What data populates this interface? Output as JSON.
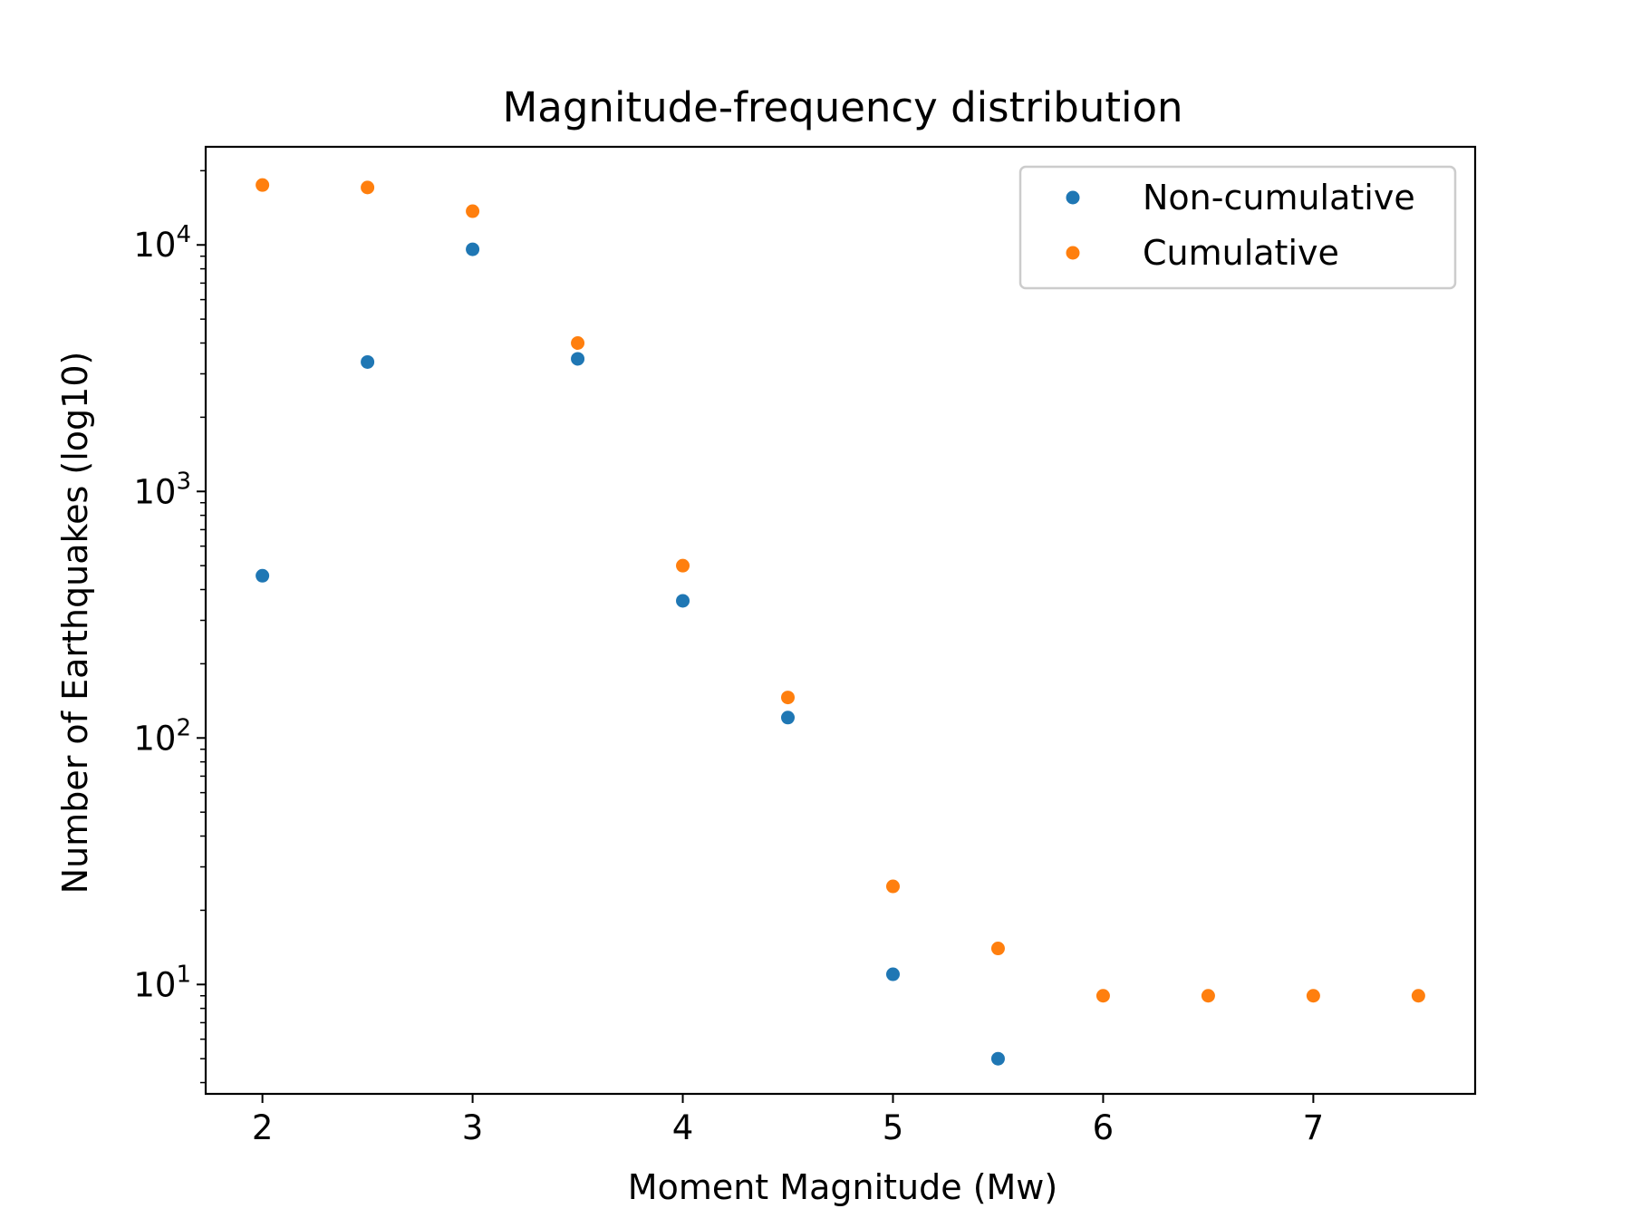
{
  "chart_data": {
    "type": "scatter",
    "title": "Magnitude-frequency distribution",
    "xlabel": "Moment Magnitude (Mw)",
    "ylabel": "Number of Earthquakes (log10)",
    "y_scale": "log",
    "xlim": [
      1.73,
      7.77
    ],
    "ylim": [
      3.6,
      25000
    ],
    "x_ticks": [
      2,
      3,
      4,
      5,
      6,
      7
    ],
    "x_tick_labels": [
      "2",
      "3",
      "4",
      "5",
      "6",
      "7"
    ],
    "y_major_ticks": [
      10,
      100,
      1000,
      10000
    ],
    "y_tick_labels": [
      {
        "base": "10",
        "exp": "1"
      },
      {
        "base": "10",
        "exp": "2"
      },
      {
        "base": "10",
        "exp": "3"
      },
      {
        "base": "10",
        "exp": "4"
      }
    ],
    "grid": false,
    "legend_position": "top-right",
    "series": [
      {
        "name": "Non-cumulative",
        "color": "#1f77b4",
        "x": [
          2.0,
          2.5,
          3.0,
          3.5,
          4.0,
          4.5,
          5.0,
          5.5
        ],
        "y": [
          455,
          3350,
          9600,
          3450,
          360,
          121,
          11,
          5
        ]
      },
      {
        "name": "Cumulative",
        "color": "#ff7f0e",
        "x": [
          2.0,
          2.5,
          3.0,
          3.5,
          4.0,
          4.5,
          5.0,
          5.5,
          6.0,
          6.5,
          7.0,
          7.5
        ],
        "y": [
          17500,
          17100,
          13700,
          4000,
          500,
          146,
          25,
          14,
          9,
          9,
          9,
          9
        ]
      }
    ]
  }
}
